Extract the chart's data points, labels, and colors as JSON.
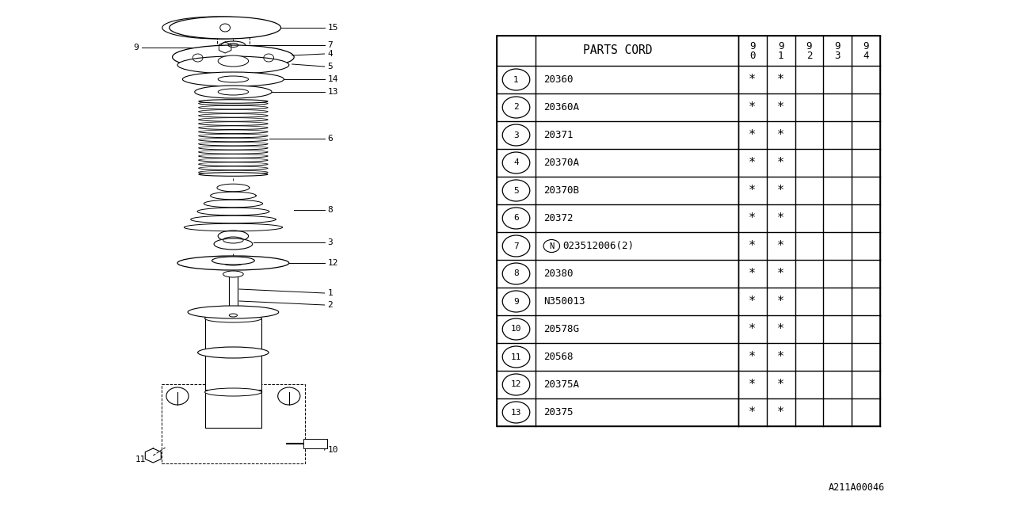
{
  "bg_color": "#ffffff",
  "table_title": "PARTS CORD",
  "col_headers_top": [
    "9",
    "9",
    "9",
    "9",
    "9"
  ],
  "col_headers_bot": [
    "0",
    "1",
    "2",
    "3",
    "4"
  ],
  "rows": [
    {
      "num": "1",
      "code": "20360",
      "N_prefix": false,
      "c90": true,
      "c91": true
    },
    {
      "num": "2",
      "code": "20360A",
      "N_prefix": false,
      "c90": true,
      "c91": true
    },
    {
      "num": "3",
      "code": "20371",
      "N_prefix": false,
      "c90": true,
      "c91": true
    },
    {
      "num": "4",
      "code": "20370A",
      "N_prefix": false,
      "c90": true,
      "c91": true
    },
    {
      "num": "5",
      "code": "20370B",
      "N_prefix": false,
      "c90": true,
      "c91": true
    },
    {
      "num": "6",
      "code": "20372",
      "N_prefix": false,
      "c90": true,
      "c91": true
    },
    {
      "num": "7",
      "code": "023512006(2)",
      "N_prefix": true,
      "c90": true,
      "c91": true
    },
    {
      "num": "8",
      "code": "20380",
      "N_prefix": false,
      "c90": true,
      "c91": true
    },
    {
      "num": "9",
      "code": "N350013",
      "N_prefix": false,
      "c90": true,
      "c91": true
    },
    {
      "num": "10",
      "code": "20578G",
      "N_prefix": false,
      "c90": true,
      "c91": true
    },
    {
      "num": "11",
      "code": "20568",
      "N_prefix": false,
      "c90": true,
      "c91": true
    },
    {
      "num": "12",
      "code": "20375A",
      "N_prefix": false,
      "c90": true,
      "c91": true
    },
    {
      "num": "13",
      "code": "20375",
      "N_prefix": false,
      "c90": true,
      "c91": true
    }
  ],
  "footer_code": "A211A00046",
  "lc": "#000000",
  "tc": "#000000"
}
